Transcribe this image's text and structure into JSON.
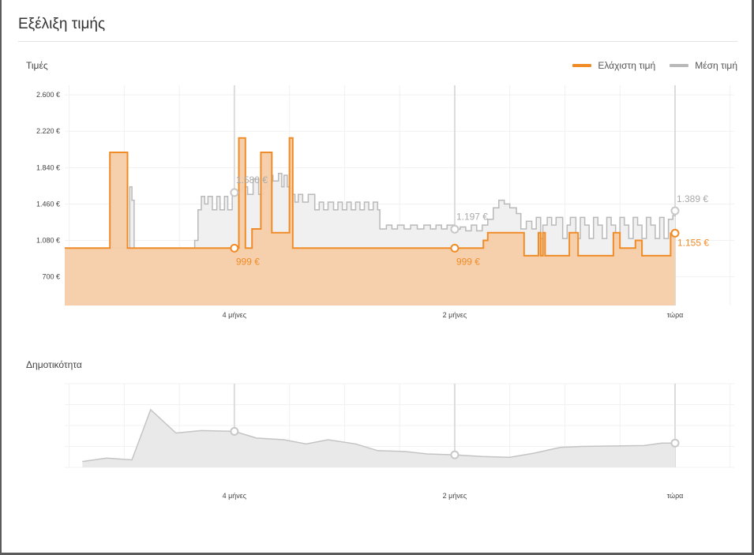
{
  "dialog": {
    "title": "Εξέλιξη τιμής"
  },
  "legend": [
    {
      "label": "Ελάχιστη τιμή",
      "color": "#f08c28"
    },
    {
      "label": "Μέση τιμή",
      "color": "#b9b9b9"
    }
  ],
  "chart_data": [
    {
      "type": "line",
      "title": "Τιμές",
      "step": true,
      "x_labels": [
        "4 μήνες",
        "2 μήνες",
        "τώρα"
      ],
      "x_label_positions_months": [
        -4,
        -2,
        0
      ],
      "x_range_months": [
        -5.54,
        0
      ],
      "y_ticks": [
        "2.600 €",
        "2.220 €",
        "1.840 €",
        "1.460 €",
        "1.080 €",
        "700 €"
      ],
      "y_tick_values": [
        2600,
        2220,
        1840,
        1460,
        1080,
        700
      ],
      "ylim": [
        400,
        2700
      ],
      "grid": true,
      "legend_position": "top-right",
      "series": [
        {
          "name": "Ελάχιστη τιμή",
          "color": "#f08c28",
          "fill": "#f5cda8",
          "points": [
            [
              -5.54,
              999
            ],
            [
              -5.13,
              1999
            ],
            [
              -4.97,
              999
            ],
            [
              -4.18,
              999
            ],
            [
              -4.0,
              999
            ],
            [
              -3.96,
              2150
            ],
            [
              -3.9,
              999
            ],
            [
              -3.84,
              1200
            ],
            [
              -3.76,
              1999
            ],
            [
              -3.66,
              1160
            ],
            [
              -3.5,
              2150
            ],
            [
              -3.47,
              999
            ],
            [
              -2.0,
              999
            ],
            [
              -1.74,
              1080
            ],
            [
              -1.7,
              1160
            ],
            [
              -1.41,
              1160
            ],
            [
              -1.37,
              920
            ],
            [
              -1.24,
              1160
            ],
            [
              -1.22,
              920
            ],
            [
              -1.2,
              1160
            ],
            [
              -1.18,
              920
            ],
            [
              -0.98,
              920
            ],
            [
              -0.96,
              1160
            ],
            [
              -0.9,
              1160
            ],
            [
              -0.88,
              920
            ],
            [
              -0.58,
              920
            ],
            [
              -0.56,
              1160
            ],
            [
              -0.52,
              1160
            ],
            [
              -0.5,
              999
            ],
            [
              -0.38,
              999
            ],
            [
              -0.36,
              1080
            ],
            [
              -0.3,
              920
            ],
            [
              -0.06,
              920
            ],
            [
              -0.04,
              1155
            ],
            [
              0,
              1155
            ]
          ]
        },
        {
          "name": "Μέση τιμή",
          "color": "#b9b9b9",
          "fill": "#f0f0f0",
          "points": [
            [
              -5.54,
              999
            ],
            [
              -4.97,
              999
            ],
            [
              -4.95,
              1640
            ],
            [
              -4.93,
              1500
            ],
            [
              -4.91,
              999
            ],
            [
              -4.38,
              999
            ],
            [
              -4.36,
              1080
            ],
            [
              -4.33,
              1400
            ],
            [
              -4.3,
              1540
            ],
            [
              -4.27,
              1460
            ],
            [
              -4.24,
              1540
            ],
            [
              -4.2,
              1400
            ],
            [
              -4.16,
              1540
            ],
            [
              -4.13,
              1400
            ],
            [
              -4.09,
              1540
            ],
            [
              -4.06,
              1400
            ],
            [
              -4.02,
              1560
            ],
            [
              -4.0,
              1580
            ],
            [
              -3.98,
              1600
            ],
            [
              -3.93,
              1640
            ],
            [
              -3.88,
              1560
            ],
            [
              -3.83,
              1720
            ],
            [
              -3.78,
              1560
            ],
            [
              -3.73,
              1640
            ],
            [
              -3.7,
              1760
            ],
            [
              -3.65,
              1700
            ],
            [
              -3.6,
              1780
            ],
            [
              -3.57,
              1640
            ],
            [
              -3.55,
              1760
            ],
            [
              -3.52,
              1640
            ],
            [
              -3.48,
              1560
            ],
            [
              -3.45,
              1480
            ],
            [
              -3.42,
              1560
            ],
            [
              -3.38,
              1480
            ],
            [
              -3.33,
              1560
            ],
            [
              -3.27,
              1400
            ],
            [
              -3.23,
              1480
            ],
            [
              -3.19,
              1400
            ],
            [
              -3.15,
              1480
            ],
            [
              -3.1,
              1400
            ],
            [
              -3.06,
              1480
            ],
            [
              -3.02,
              1400
            ],
            [
              -2.98,
              1480
            ],
            [
              -2.94,
              1400
            ],
            [
              -2.9,
              1480
            ],
            [
              -2.86,
              1400
            ],
            [
              -2.82,
              1480
            ],
            [
              -2.78,
              1400
            ],
            [
              -2.74,
              1480
            ],
            [
              -2.7,
              1400
            ],
            [
              -2.68,
              1200
            ],
            [
              -2.62,
              1240
            ],
            [
              -2.57,
              1200
            ],
            [
              -2.52,
              1240
            ],
            [
              -2.46,
              1200
            ],
            [
              -2.4,
              1240
            ],
            [
              -2.34,
              1200
            ],
            [
              -2.28,
              1240
            ],
            [
              -2.22,
              1200
            ],
            [
              -2.17,
              1240
            ],
            [
              -2.12,
              1200
            ],
            [
              -2.07,
              1240
            ],
            [
              -2.0,
              1197
            ],
            [
              -1.95,
              1220
            ],
            [
              -1.9,
              1180
            ],
            [
              -1.85,
              1240
            ],
            [
              -1.8,
              1180
            ],
            [
              -1.75,
              1240
            ],
            [
              -1.7,
              1300
            ],
            [
              -1.65,
              1420
            ],
            [
              -1.6,
              1500
            ],
            [
              -1.55,
              1460
            ],
            [
              -1.5,
              1420
            ],
            [
              -1.44,
              1360
            ],
            [
              -1.4,
              1200
            ],
            [
              -1.35,
              1280
            ],
            [
              -1.3,
              1200
            ],
            [
              -1.26,
              1320
            ],
            [
              -1.22,
              1100
            ],
            [
              -1.2,
              1240
            ],
            [
              -1.16,
              1320
            ],
            [
              -1.12,
              1240
            ],
            [
              -1.08,
              1320
            ],
            [
              -1.02,
              1100
            ],
            [
              -0.98,
              1240
            ],
            [
              -0.95,
              1320
            ],
            [
              -0.9,
              1100
            ],
            [
              -0.86,
              1320
            ],
            [
              -0.82,
              1240
            ],
            [
              -0.78,
              1100
            ],
            [
              -0.74,
              1320
            ],
            [
              -0.7,
              1240
            ],
            [
              -0.66,
              1100
            ],
            [
              -0.62,
              1320
            ],
            [
              -0.58,
              1240
            ],
            [
              -0.54,
              1100
            ],
            [
              -0.5,
              1320
            ],
            [
              -0.46,
              1240
            ],
            [
              -0.42,
              1100
            ],
            [
              -0.38,
              1320
            ],
            [
              -0.34,
              1240
            ],
            [
              -0.3,
              1100
            ],
            [
              -0.26,
              1320
            ],
            [
              -0.22,
              1240
            ],
            [
              -0.18,
              1100
            ],
            [
              -0.14,
              1320
            ],
            [
              -0.1,
              1100
            ],
            [
              -0.06,
              1300
            ],
            [
              -0.02,
              1340
            ],
            [
              0,
              1389
            ]
          ]
        }
      ],
      "annotations": [
        {
          "series": "Ελάχιστη τιμή",
          "x": -4,
          "y": 999,
          "label": "999 €"
        },
        {
          "series": "Μέση τιμή",
          "x": -4,
          "y": 1580,
          "label": "1.580 €"
        },
        {
          "series": "Ελάχιστη τιμή",
          "x": -2,
          "y": 999,
          "label": "999 €"
        },
        {
          "series": "Μέση τιμή",
          "x": -2,
          "y": 1197,
          "label": "1.197 €"
        },
        {
          "series": "Μέση τιμή",
          "x": 0,
          "y": 1389,
          "label": "1.389 €"
        },
        {
          "series": "Ελάχιστη τιμή",
          "x": 0,
          "y": 1155,
          "label": "1.155 €"
        }
      ]
    },
    {
      "type": "area",
      "title": "Δημοτικότητα",
      "x_labels": [
        "4 μήνες",
        "2 μήνες",
        "τώρα"
      ],
      "x_label_positions_months": [
        -4,
        -2,
        0
      ],
      "x_range_months": [
        -5.54,
        0
      ],
      "ylim": [
        0,
        1
      ],
      "grid": true,
      "series": [
        {
          "name": "Δημοτικότητα",
          "color": "#c4c4c4",
          "fill": "#e9e9e9",
          "points": [
            [
              -5.38,
              0.07
            ],
            [
              -5.16,
              0.11
            ],
            [
              -4.93,
              0.09
            ],
            [
              -4.76,
              0.69
            ],
            [
              -4.53,
              0.41
            ],
            [
              -4.3,
              0.44
            ],
            [
              -4.0,
              0.43
            ],
            [
              -3.8,
              0.35
            ],
            [
              -3.55,
              0.33
            ],
            [
              -3.35,
              0.28
            ],
            [
              -3.15,
              0.33
            ],
            [
              -2.9,
              0.28
            ],
            [
              -2.7,
              0.2
            ],
            [
              -2.45,
              0.19
            ],
            [
              -2.25,
              0.16
            ],
            [
              -2.0,
              0.15
            ],
            [
              -1.75,
              0.13
            ],
            [
              -1.5,
              0.12
            ],
            [
              -1.28,
              0.17
            ],
            [
              -1.04,
              0.24
            ],
            [
              -0.85,
              0.25
            ],
            [
              -0.28,
              0.26
            ],
            [
              -0.12,
              0.29
            ],
            [
              0,
              0.29
            ]
          ]
        }
      ],
      "markers_at": [
        -4,
        -2,
        0
      ]
    }
  ]
}
